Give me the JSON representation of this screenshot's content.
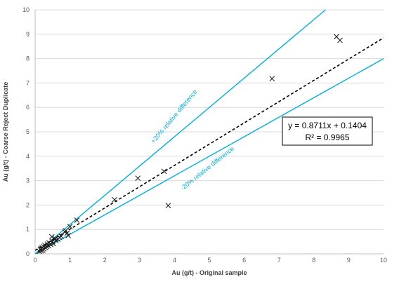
{
  "chart_data": {
    "type": "scatter",
    "xlabel": "Au (g/t) - Original sample",
    "ylabel": "Au (g/t) - Coarse Reject Duplicate",
    "xlim": [
      0,
      10
    ],
    "ylim": [
      0,
      10
    ],
    "x_ticks": [
      "0",
      "1",
      "2",
      "3",
      "4",
      "5",
      "6",
      "7",
      "8",
      "9",
      "10"
    ],
    "y_ticks": [
      "0",
      "1",
      "2",
      "3",
      "4",
      "5",
      "6",
      "7",
      "8",
      "9",
      "10"
    ],
    "grid": "horizontal",
    "marker": "x",
    "points": [
      {
        "x": 0.12,
        "y": 0.1
      },
      {
        "x": 0.15,
        "y": 0.18
      },
      {
        "x": 0.17,
        "y": 0.22
      },
      {
        "x": 0.18,
        "y": 0.12
      },
      {
        "x": 0.2,
        "y": 0.25
      },
      {
        "x": 0.22,
        "y": 0.15
      },
      {
        "x": 0.24,
        "y": 0.3
      },
      {
        "x": 0.25,
        "y": 0.2
      },
      {
        "x": 0.28,
        "y": 0.35
      },
      {
        "x": 0.3,
        "y": 0.25
      },
      {
        "x": 0.33,
        "y": 0.3
      },
      {
        "x": 0.35,
        "y": 0.4
      },
      {
        "x": 0.38,
        "y": 0.33
      },
      {
        "x": 0.4,
        "y": 0.45
      },
      {
        "x": 0.45,
        "y": 0.38
      },
      {
        "x": 0.48,
        "y": 0.7
      },
      {
        "x": 0.5,
        "y": 0.5
      },
      {
        "x": 0.52,
        "y": 0.42
      },
      {
        "x": 0.55,
        "y": 0.6
      },
      {
        "x": 0.58,
        "y": 0.62
      },
      {
        "x": 0.6,
        "y": 0.55
      },
      {
        "x": 0.65,
        "y": 0.6
      },
      {
        "x": 0.7,
        "y": 0.68
      },
      {
        "x": 0.75,
        "y": 0.72
      },
      {
        "x": 0.85,
        "y": 0.9
      },
      {
        "x": 0.88,
        "y": 0.95
      },
      {
        "x": 0.92,
        "y": 0.85
      },
      {
        "x": 0.95,
        "y": 0.75
      },
      {
        "x": 1.0,
        "y": 1.12
      },
      {
        "x": 1.2,
        "y": 1.38
      },
      {
        "x": 2.28,
        "y": 2.22
      },
      {
        "x": 2.95,
        "y": 3.1
      },
      {
        "x": 3.7,
        "y": 3.38
      },
      {
        "x": 3.82,
        "y": 1.98
      },
      {
        "x": 6.8,
        "y": 7.18
      },
      {
        "x": 8.65,
        "y": 8.9
      },
      {
        "x": 8.75,
        "y": 8.75
      }
    ],
    "lines": [
      {
        "slope": 1.2,
        "intercept": 0,
        "color": "#00b0d8",
        "style": "solid",
        "label": "+20% relative difference"
      },
      {
        "slope": 0.8,
        "intercept": 0,
        "color": "#00b0d8",
        "style": "solid",
        "label": "-20% relative difference"
      },
      {
        "slope": 0.8711,
        "intercept": 0.1404,
        "color": "#000000",
        "style": "dashed"
      }
    ],
    "trendline_equation": "y = 0.8711x + 0.1404",
    "trendline_r2": "R² = 0.9965",
    "colors": {
      "marker": "#1a1a1a",
      "bounds": "#00b0d8",
      "trend": "#000000",
      "grid": "#d9d9d9"
    }
  }
}
